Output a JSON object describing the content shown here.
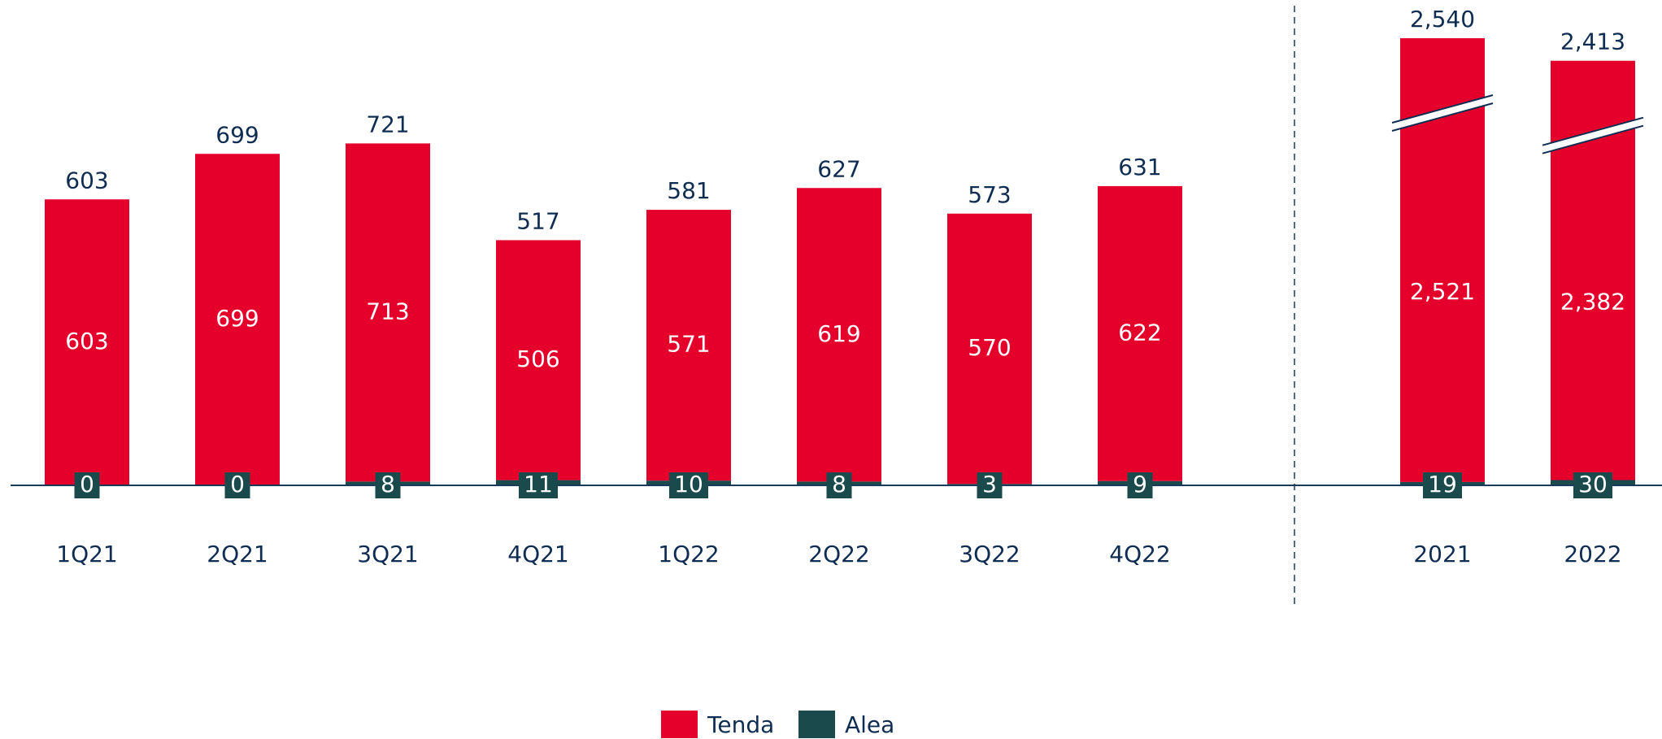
{
  "chart_data": [
    {
      "type": "stacked_bar",
      "categories": [
        "1Q21",
        "2Q21",
        "3Q21",
        "4Q21",
        "1Q22",
        "2Q22",
        "3Q22",
        "4Q22"
      ],
      "series": [
        {
          "name": "Tenda",
          "color": "#e4002b",
          "values": [
            603,
            699,
            713,
            506,
            571,
            619,
            570,
            622
          ]
        },
        {
          "name": "Alea",
          "color": "#1b4a4c",
          "values": [
            0,
            0,
            8,
            11,
            10,
            8,
            3,
            9
          ]
        }
      ],
      "totals": [
        603,
        699,
        721,
        517,
        581,
        627,
        573,
        631
      ],
      "ylim": [
        0,
        780
      ]
    },
    {
      "type": "stacked_bar",
      "categories": [
        "2021",
        "2022"
      ],
      "series": [
        {
          "color": "#e4002b",
          "values": [
            2521,
            2382
          ],
          "value_labels": [
            "2,521",
            "2,382"
          ]
        },
        {
          "color": "#1b4a4c",
          "values": [
            19,
            30
          ]
        }
      ],
      "totals": [
        2540,
        2413
      ],
      "total_labels": [
        "2,540",
        "2,413"
      ],
      "ylim": [
        0,
        2600
      ],
      "axis_break": true
    }
  ]
}
